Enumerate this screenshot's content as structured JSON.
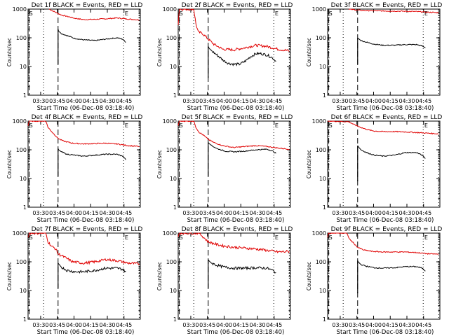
{
  "figure": {
    "background": "#ffffff",
    "colors": {
      "events": "#000000",
      "lld": "#e00000"
    }
  },
  "chart_data": [
    {
      "type": "line",
      "title": "Det 1f BLACK = Events, RED = LLD",
      "xlabel": "Start Time (06-Dec-08 03:18:40)",
      "ylabel": "Counts/sec",
      "yscale": "log",
      "ylim": [
        1,
        1000
      ],
      "xlim_minutes": [
        0,
        101
      ],
      "x_tick_labels": [
        "03:30",
        "03:45",
        "04:00",
        "04:15",
        "04:30",
        "04:45"
      ],
      "y_tick_labels": [
        "1",
        "10",
        "100",
        "1000"
      ],
      "markers": {
        "S": 1,
        "E": 87
      },
      "vlines": {
        "dotted": [
          14,
          86,
          100
        ],
        "dashed": [
          1,
          27
        ]
      },
      "series": [
        {
          "name": "LLD",
          "color": "red",
          "x": [
            19,
            24,
            30,
            35,
            42,
            50,
            60,
            70,
            80,
            90,
            100
          ],
          "y": [
            1000,
            800,
            620,
            560,
            480,
            430,
            440,
            460,
            490,
            450,
            420
          ]
        },
        {
          "name": "Events",
          "color": "black",
          "x": [
            27,
            27.5,
            30,
            35,
            42,
            50,
            60,
            70,
            80,
            85,
            88
          ],
          "y": [
            200,
            170,
            140,
            120,
            95,
            85,
            80,
            90,
            100,
            90,
            70
          ]
        }
      ]
    },
    {
      "type": "line",
      "title": "Det 2f BLACK = Events, RED = LLD",
      "xlabel": "Start Time (06-Dec-08 03:18:40)",
      "ylabel": "Counts/sec",
      "yscale": "log",
      "ylim": [
        1,
        1000
      ],
      "xlim_minutes": [
        0,
        101
      ],
      "x_tick_labels": [
        "03:30",
        "03:45",
        "04:00",
        "04:15",
        "04:30",
        "04:45"
      ],
      "y_tick_labels": [
        "1",
        "10",
        "100",
        "1000"
      ],
      "markers": {
        "S": 1,
        "E": 87
      },
      "vlines": {
        "dotted": [
          14,
          86,
          100
        ],
        "dashed": [
          1,
          27
        ]
      },
      "series": [
        {
          "name": "LLD",
          "color": "red",
          "x": [
            0,
            1,
            14,
            16,
            18,
            22,
            27,
            32,
            40,
            50,
            60,
            70,
            80,
            90,
            100
          ],
          "y": [
            300,
            1000,
            1000,
            300,
            160,
            140,
            90,
            60,
            40,
            38,
            45,
            55,
            50,
            40,
            35
          ]
        },
        {
          "name": "Events",
          "color": "black",
          "x": [
            27,
            27.5,
            30,
            35,
            40,
            45,
            50,
            55,
            60,
            65,
            70,
            75,
            80,
            85,
            88
          ],
          "y": [
            50,
            45,
            35,
            25,
            17,
            13,
            12,
            12,
            15,
            22,
            28,
            28,
            25,
            20,
            15
          ]
        }
      ]
    },
    {
      "type": "line",
      "title": "Det 3f BLACK = Events, RED = LLD",
      "xlabel": "Start Time (06-Dec-08 03:18:40)",
      "ylabel": "Counts/sec",
      "yscale": "log",
      "ylim": [
        1,
        1000
      ],
      "xlim_minutes": [
        0,
        101
      ],
      "x_tick_labels": [
        "03:30",
        "03:45",
        "04:00",
        "04:15",
        "04:30",
        "04:45"
      ],
      "y_tick_labels": [
        "1",
        "10",
        "100",
        "1000"
      ],
      "markers": {
        "S": 1,
        "E": 87
      },
      "vlines": {
        "dotted": [
          14,
          86,
          100
        ],
        "dashed": [
          1,
          27
        ]
      },
      "series": [
        {
          "name": "LLD",
          "color": "red",
          "x": [
            19,
            24,
            30,
            40,
            50,
            60,
            70,
            80,
            90,
            100
          ],
          "y": [
            1000,
            950,
            900,
            880,
            860,
            850,
            840,
            820,
            780,
            750
          ]
        },
        {
          "name": "Events",
          "color": "black",
          "x": [
            27,
            27.5,
            30,
            35,
            42,
            50,
            60,
            70,
            80,
            85,
            88
          ],
          "y": [
            100,
            95,
            80,
            70,
            60,
            55,
            55,
            58,
            58,
            52,
            45
          ]
        }
      ]
    },
    {
      "type": "line",
      "title": "Det 4f BLACK = Events, RED = LLD",
      "xlabel": "Start Time (06-Dec-08 03:18:40)",
      "ylabel": "Counts/sec",
      "yscale": "log",
      "ylim": [
        1,
        1000
      ],
      "xlim_minutes": [
        0,
        101
      ],
      "x_tick_labels": [
        "03:30",
        "03:45",
        "04:00",
        "04:15",
        "04:30",
        "04:45"
      ],
      "y_tick_labels": [
        "1",
        "10",
        "100",
        "1000"
      ],
      "markers": {
        "S": 1,
        "E": 87
      },
      "vlines": {
        "dotted": [
          14,
          86,
          100
        ],
        "dashed": [
          1,
          27
        ]
      },
      "series": [
        {
          "name": "LLD",
          "color": "red",
          "x": [
            0,
            1,
            16,
            18,
            22,
            27,
            32,
            40,
            50,
            60,
            70,
            80,
            90,
            100
          ],
          "y": [
            700,
            1000,
            1000,
            600,
            400,
            250,
            200,
            170,
            160,
            165,
            170,
            160,
            140,
            130
          ]
        },
        {
          "name": "Events",
          "color": "black",
          "x": [
            27,
            27.5,
            30,
            35,
            42,
            50,
            60,
            70,
            80,
            85,
            88
          ],
          "y": [
            110,
            100,
            85,
            70,
            65,
            60,
            65,
            70,
            70,
            60,
            45
          ]
        }
      ]
    },
    {
      "type": "line",
      "title": "Det 5f BLACK = Events, RED = LLD",
      "xlabel": "Start Time (06-Dec-08 03:18:40)",
      "ylabel": "Counts/sec",
      "yscale": "log",
      "ylim": [
        1,
        1000
      ],
      "xlim_minutes": [
        0,
        101
      ],
      "x_tick_labels": [
        "03:30",
        "03:45",
        "04:00",
        "04:15",
        "04:30",
        "04:45"
      ],
      "y_tick_labels": [
        "1",
        "10",
        "100",
        "1000"
      ],
      "markers": {
        "S": 1,
        "E": 87
      },
      "vlines": {
        "dotted": [
          14,
          86,
          100
        ],
        "dashed": [
          1,
          27
        ]
      },
      "series": [
        {
          "name": "LLD",
          "color": "red",
          "x": [
            0,
            1,
            14,
            16,
            19,
            23,
            27,
            32,
            40,
            50,
            60,
            70,
            80,
            90,
            100
          ],
          "y": [
            700,
            1000,
            1000,
            600,
            400,
            320,
            230,
            180,
            140,
            120,
            130,
            140,
            130,
            115,
            105
          ]
        },
        {
          "name": "Events",
          "color": "black",
          "x": [
            27,
            27.5,
            30,
            35,
            42,
            50,
            60,
            70,
            80,
            85,
            88
          ],
          "y": [
            180,
            170,
            140,
            110,
            90,
            85,
            90,
            100,
            105,
            90,
            75
          ]
        }
      ]
    },
    {
      "type": "line",
      "title": "Det 6f BLACK = Events, RED = LLD",
      "xlabel": "Start Time (06-Dec-08 03:18:40)",
      "ylabel": "Counts/sec",
      "yscale": "log",
      "ylim": [
        1,
        1000
      ],
      "xlim_minutes": [
        0,
        101
      ],
      "x_tick_labels": [
        "03:30",
        "03:45",
        "04:00",
        "04:15",
        "04:30",
        "04:45"
      ],
      "y_tick_labels": [
        "1",
        "10",
        "100",
        "1000"
      ],
      "markers": {
        "S": 1,
        "E": 87
      },
      "vlines": {
        "dotted": [
          14,
          86,
          100
        ],
        "dashed": [
          1,
          27
        ]
      },
      "series": [
        {
          "name": "LLD",
          "color": "red",
          "x": [
            0,
            2,
            19,
            24,
            30,
            36,
            42,
            50,
            60,
            70,
            80,
            90,
            100
          ],
          "y": [
            1000,
            1000,
            950,
            750,
            600,
            500,
            450,
            430,
            430,
            420,
            400,
            380,
            360
          ]
        },
        {
          "name": "Events",
          "color": "black",
          "x": [
            27,
            27.5,
            30,
            35,
            42,
            50,
            60,
            70,
            80,
            85,
            88
          ],
          "y": [
            140,
            130,
            100,
            80,
            65,
            60,
            65,
            80,
            80,
            65,
            50
          ]
        }
      ]
    },
    {
      "type": "line",
      "title": "Det 7f BLACK = Events, RED = LLD",
      "xlabel": "Start Time (06-Dec-08 03:18:40)",
      "ylabel": "Counts/sec",
      "yscale": "log",
      "ylim": [
        1,
        1000
      ],
      "xlim_minutes": [
        0,
        101
      ],
      "x_tick_labels": [
        "03:30",
        "03:45",
        "04:00",
        "04:15",
        "04:30",
        "04:45"
      ],
      "y_tick_labels": [
        "1",
        "10",
        "100",
        "1000"
      ],
      "markers": {
        "S": 1,
        "E": 87
      },
      "vlines": {
        "dotted": [
          14,
          86,
          100
        ],
        "dashed": [
          1,
          27
        ]
      },
      "series": [
        {
          "name": "LLD",
          "color": "red",
          "x": [
            0,
            1,
            16,
            18,
            21,
            25,
            27,
            32,
            40,
            50,
            60,
            70,
            80,
            90,
            100
          ],
          "y": [
            700,
            1000,
            1000,
            500,
            350,
            280,
            190,
            150,
            100,
            90,
            100,
            120,
            110,
            90,
            85
          ]
        },
        {
          "name": "Events",
          "color": "black",
          "x": [
            27,
            27.5,
            30,
            35,
            42,
            50,
            60,
            70,
            80,
            85,
            88
          ],
          "y": [
            90,
            85,
            65,
            50,
            45,
            45,
            50,
            60,
            60,
            55,
            45
          ]
        }
      ]
    },
    {
      "type": "line",
      "title": "Det 8f BLACK = Events, RED = LLD",
      "xlabel": "Start Time (06-Dec-08 03:18:40)",
      "ylabel": "Counts/sec",
      "yscale": "log",
      "ylim": [
        1,
        1000
      ],
      "xlim_minutes": [
        0,
        101
      ],
      "x_tick_labels": [
        "03:30",
        "03:45",
        "04:00",
        "04:15",
        "04:30",
        "04:45"
      ],
      "y_tick_labels": [
        "1",
        "10",
        "100",
        "1000"
      ],
      "markers": {
        "S": 1,
        "E": 87
      },
      "vlines": {
        "dotted": [
          14,
          86,
          100
        ],
        "dashed": [
          1,
          27
        ]
      },
      "series": [
        {
          "name": "LLD",
          "color": "red",
          "x": [
            0,
            1,
            19,
            23,
            27,
            32,
            40,
            50,
            60,
            70,
            80,
            90,
            100
          ],
          "y": [
            700,
            1000,
            1000,
            700,
            500,
            430,
            360,
            320,
            300,
            280,
            250,
            220,
            230
          ]
        },
        {
          "name": "Events",
          "color": "black",
          "x": [
            27,
            27.5,
            30,
            35,
            42,
            50,
            60,
            70,
            80,
            85,
            88
          ],
          "y": [
            120,
            110,
            90,
            75,
            65,
            60,
            60,
            62,
            60,
            50,
            42
          ]
        }
      ]
    },
    {
      "type": "line",
      "title": "Det 9f BLACK = Events, RED = LLD",
      "xlabel": "Start Time (06-Dec-08 03:18:40)",
      "ylabel": "Counts/sec",
      "yscale": "log",
      "ylim": [
        1,
        1000
      ],
      "xlim_minutes": [
        0,
        101
      ],
      "x_tick_labels": [
        "03:30",
        "03:45",
        "04:00",
        "04:15",
        "04:30",
        "04:45"
      ],
      "y_tick_labels": [
        "1",
        "10",
        "100",
        "1000"
      ],
      "markers": {
        "S": 1,
        "E": 87
      },
      "vlines": {
        "dotted": [
          14,
          86,
          100
        ],
        "dashed": [
          1,
          27
        ]
      },
      "series": [
        {
          "name": "LLD",
          "color": "red",
          "x": [
            0,
            1,
            17,
            20,
            24,
            27,
            32,
            40,
            50,
            60,
            70,
            80,
            90,
            100
          ],
          "y": [
            700,
            1000,
            1000,
            600,
            420,
            320,
            260,
            230,
            220,
            220,
            220,
            210,
            190,
            185
          ]
        },
        {
          "name": "Events",
          "color": "black",
          "x": [
            27,
            27.5,
            30,
            35,
            42,
            50,
            60,
            70,
            80,
            85,
            88
          ],
          "y": [
            110,
            100,
            80,
            70,
            62,
            60,
            62,
            68,
            68,
            60,
            48
          ]
        }
      ]
    }
  ]
}
